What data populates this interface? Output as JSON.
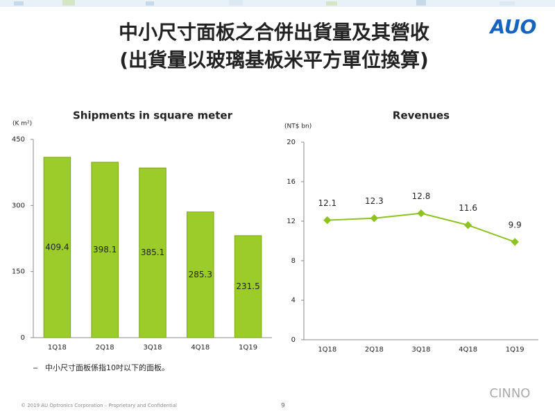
{
  "header": {
    "title_line1": "中小尺寸面板之合併出貨量及其營收",
    "title_line2": "(出貨量以玻璃基板米平方單位換算)",
    "logo": "AUO"
  },
  "chart_data": [
    {
      "type": "bar",
      "title": "Shipments in square meter",
      "unit_label": "(K m²)",
      "categories": [
        "1Q18",
        "2Q18",
        "3Q18",
        "4Q18",
        "1Q19"
      ],
      "values": [
        409.4,
        398.1,
        385.1,
        285.3,
        231.5
      ],
      "color": "#9ccc2a",
      "ylim": [
        0,
        450
      ],
      "yticks": [
        0,
        150,
        300,
        450
      ],
      "grid": false
    },
    {
      "type": "line",
      "title": "Revenues",
      "unit_label": "(NT$ bn)",
      "categories": [
        "1Q18",
        "2Q18",
        "3Q18",
        "4Q18",
        "1Q19"
      ],
      "values": [
        12.1,
        12.3,
        12.8,
        11.6,
        9.9
      ],
      "color": "#8dc21f",
      "ylim": [
        0,
        20
      ],
      "yticks": [
        0,
        4,
        8,
        12,
        16,
        20
      ],
      "grid": false
    }
  ],
  "note": "中小尺寸面板係指10吋以下的面板。",
  "footer": {
    "copyright": "© 2019 AU Optronics Corporation – Proprietary and Confidential",
    "page_number": "9",
    "watermark": "CINNO"
  }
}
